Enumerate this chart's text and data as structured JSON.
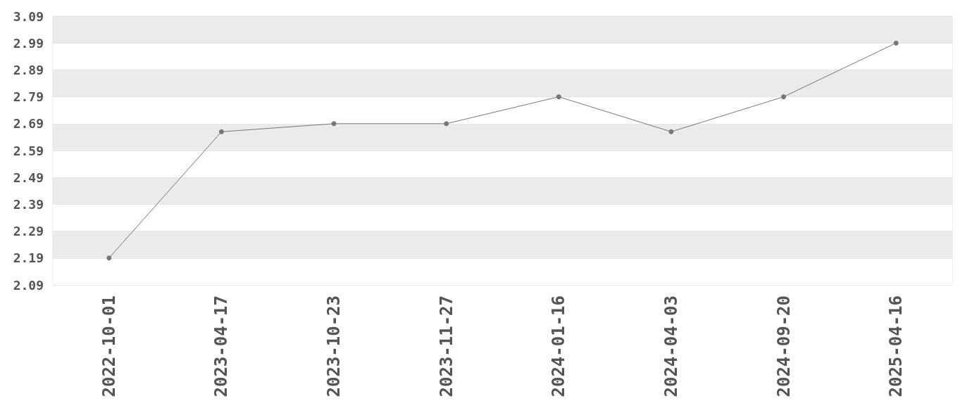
{
  "chart_data": {
    "type": "line",
    "categories": [
      "2022-10-01",
      "2023-04-17",
      "2023-10-23",
      "2023-11-27",
      "2024-01-16",
      "2024-04-03",
      "2024-09-20",
      "2025-04-16"
    ],
    "values": [
      2.19,
      2.66,
      2.69,
      2.69,
      2.79,
      2.66,
      2.79,
      2.99
    ],
    "color": "#777777",
    "marker": "circle",
    "line_style": "solid",
    "ylim": [
      2.09,
      3.09
    ],
    "yticks": [
      2.09,
      2.19,
      2.29,
      2.39,
      2.49,
      2.59,
      2.69,
      2.79,
      2.89,
      2.99,
      3.09
    ],
    "grid": "y"
  }
}
